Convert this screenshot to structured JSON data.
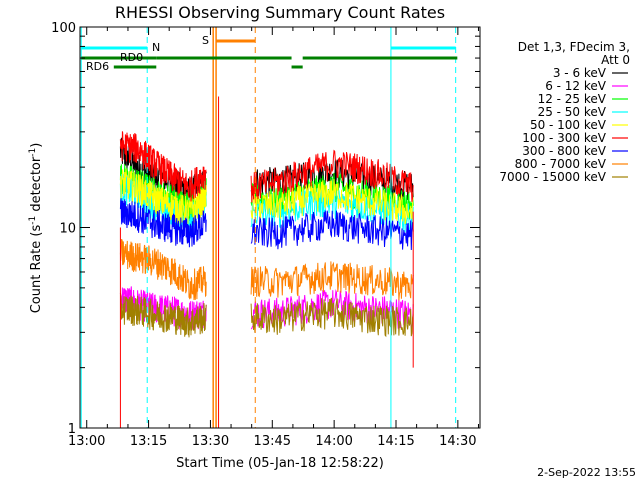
{
  "chart_data": {
    "type": "line",
    "title": "RHESSI Observing Summary Count Rates",
    "xlabel": "Start Time (05-Jan-18 12:58:22)",
    "ylabel_main": "Count Rate (s",
    "ylabel_sup1": "-1",
    "ylabel_mid": " detector",
    "ylabel_sup2": "-1",
    "ylabel_end": ")",
    "x_ticks": [
      "13:00",
      "13:15",
      "13:30",
      "13:45",
      "14:00",
      "14:15",
      "14:30"
    ],
    "y_ticks": [
      "1",
      "10",
      "100"
    ],
    "yscale": "log",
    "ylim": [
      1,
      100
    ],
    "xlim_minutes": [
      0,
      97
    ],
    "legend_header": [
      "Det 1,3, FDecim 3,",
      "Att 0"
    ],
    "series": [
      {
        "name": "3 - 6 keV",
        "color": "#000000",
        "seg1": [
          24,
          20,
          18,
          17,
          15,
          17
        ],
        "seg2": [
          17,
          17,
          18,
          19,
          18,
          17,
          16
        ]
      },
      {
        "name": "6 - 12 keV",
        "color": "#ff00ff",
        "seg1": [
          4.5,
          4.2,
          4.0,
          3.9,
          3.7,
          3.8
        ],
        "seg2": [
          3.8,
          3.8,
          4.0,
          4.2,
          4.0,
          3.9,
          3.7
        ]
      },
      {
        "name": "12 - 25 keV",
        "color": "#00ff00",
        "seg1": [
          18,
          17,
          15,
          14,
          13,
          15
        ],
        "seg2": [
          14,
          14,
          15,
          16,
          15,
          14,
          13
        ]
      },
      {
        "name": "25 - 50 keV",
        "color": "#00ffff",
        "seg1": [
          16,
          15,
          13,
          12,
          11,
          13
        ],
        "seg2": [
          12,
          12,
          13,
          13.5,
          13,
          12,
          11
        ]
      },
      {
        "name": "50 - 100 keV",
        "color": "#ffff00",
        "seg1": [
          17,
          16,
          14,
          13,
          12,
          14
        ],
        "seg2": [
          13,
          13,
          14,
          15,
          14,
          13,
          12
        ]
      },
      {
        "name": "100 - 300 keV",
        "color": "#ff0000",
        "seg1": [
          26,
          25,
          21,
          18,
          16,
          19
        ],
        "seg2": [
          16,
          17,
          19,
          21,
          20,
          18,
          16
        ]
      },
      {
        "name": "300 - 800 keV",
        "color": "#0000ff",
        "seg1": [
          12,
          11.5,
          10.5,
          10,
          9.5,
          10.5
        ],
        "seg2": [
          9.5,
          9.5,
          10,
          10.5,
          10,
          9.6,
          9.2
        ]
      },
      {
        "name": "800 - 7000 keV",
        "color": "#ff8000",
        "seg1": [
          7.5,
          7.2,
          6.8,
          6.2,
          5.2,
          5.5
        ],
        "seg2": [
          5.5,
          5.4,
          5.6,
          5.8,
          5.6,
          5.4,
          5.1
        ]
      },
      {
        "name": "7000 - 15000 keV",
        "color": "#a08000",
        "seg1": [
          4,
          3.9,
          3.7,
          3.6,
          3.4,
          3.6
        ],
        "seg2": [
          3.6,
          3.5,
          3.7,
          3.8,
          3.6,
          3.5,
          3.4
        ]
      }
    ],
    "flags": {
      "N": "N",
      "RD0": "RD0",
      "RD6": "RD6",
      "S": "S"
    },
    "footer_date": "2-Sep-2022 13:55"
  }
}
